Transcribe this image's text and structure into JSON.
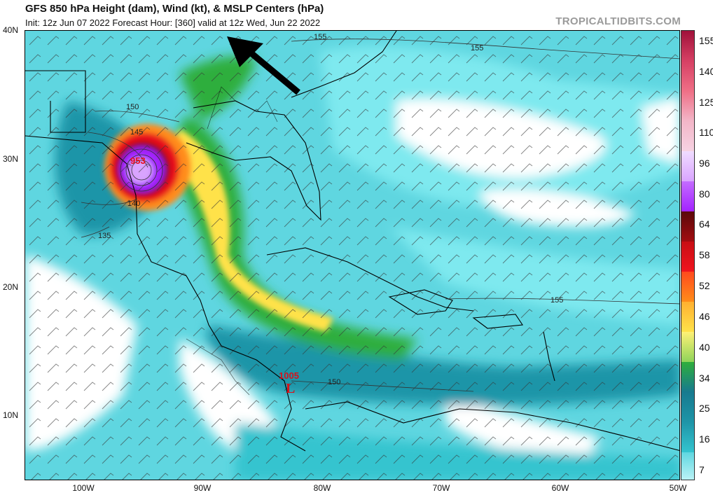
{
  "header": {
    "title": "GFS 850 hPa Height (dam), Wind (kt), & MSLP Centers (hPa)",
    "subtitle": "Init: 12z Jun 07 2022   Forecast Hour: [360]   valid at 12z Wed, Jun 22 2022",
    "brand": "TROPICALTIDBITS.COM"
  },
  "axes": {
    "lat_labels": [
      "40N",
      "30N",
      "20N",
      "10N"
    ],
    "lon_labels": [
      "100W",
      "90W",
      "80W",
      "70W",
      "60W",
      "50W"
    ]
  },
  "contours": {
    "labels": [
      "155",
      "155",
      "150",
      "145",
      "140",
      "135",
      "155",
      "150"
    ]
  },
  "lows": {
    "hurricane_pressure": "953",
    "low_pressure": "1005",
    "low_letter": "L"
  },
  "colorbar": {
    "labels": [
      "155",
      "140",
      "125",
      "110",
      "96",
      "80",
      "64",
      "58",
      "52",
      "46",
      "40",
      "34",
      "25",
      "16",
      "7"
    ],
    "colors": {
      "light_cyan": "#7ee9ef",
      "mid_cyan": "#34c4cf",
      "teal": "#1e95a8",
      "dark_teal": "#177a8f",
      "green": "#2fae3c",
      "yellow": "#ffe24a",
      "orange": "#ff8c1a",
      "red": "#e8101a",
      "dark_red": "#7a0a0a",
      "purple": "#a323ff",
      "lavender": "#d9a4ff",
      "pink": "#f3b6c8"
    }
  },
  "annotations": {
    "arrow": "black-arrow-icon"
  }
}
